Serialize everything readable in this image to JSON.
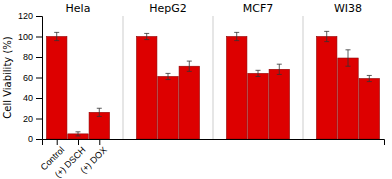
{
  "chart_data": {
    "type": "bar",
    "groups": [
      "Hela",
      "HepG2",
      "MCF7",
      "WI38"
    ],
    "categories": [
      "Control",
      "(+) DSCH",
      "(+) DOX"
    ],
    "values": [
      [
        100,
        5,
        26
      ],
      [
        100,
        61,
        71
      ],
      [
        100,
        64,
        68
      ],
      [
        100,
        79,
        59
      ]
    ],
    "errors": [
      [
        4,
        2,
        4
      ],
      [
        3,
        3,
        5
      ],
      [
        4,
        3,
        5
      ],
      [
        5,
        8,
        3
      ]
    ],
    "color": "#DD0000",
    "ylabel": "Cell Viability (%)",
    "ylim": [
      0,
      120
    ],
    "yticks": [
      0,
      20,
      40,
      60,
      80,
      100,
      120
    ],
    "grid": false
  }
}
